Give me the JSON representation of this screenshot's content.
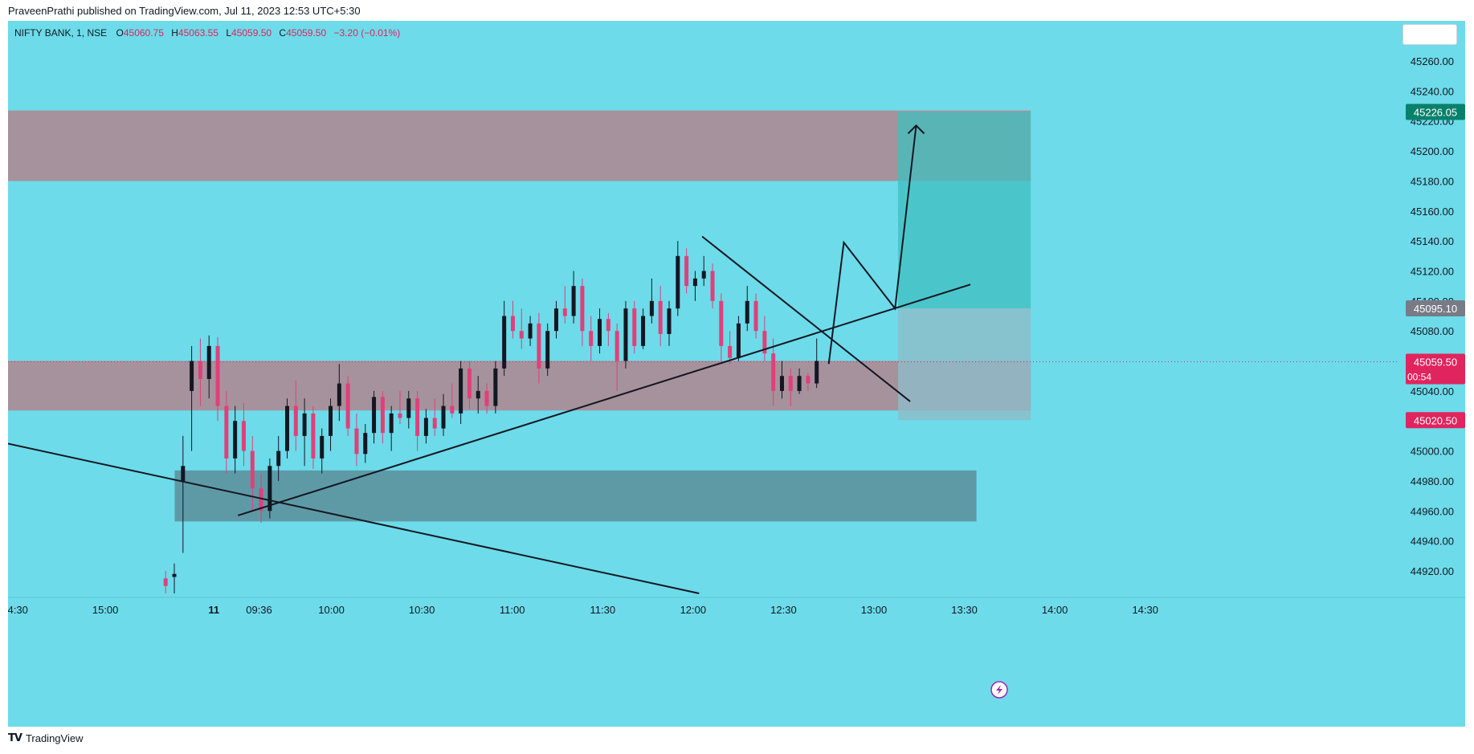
{
  "header": {
    "published_line": "PraveenPrathi published on TradingView.com, Jul 11, 2023 12:53 UTC+5:30"
  },
  "legend": {
    "symbol": "NIFTY BANK, 1, NSE",
    "open_label": "O",
    "open_value": "45060.75",
    "high_label": "H",
    "high_value": "45063.55",
    "low_label": "L",
    "low_value": "45059.50",
    "close_label": "C",
    "close_value": "45059.50",
    "change": "−3.20 (−0.01%)"
  },
  "footer": {
    "brand": "TradingView",
    "logo_glyph": "TV"
  },
  "colors": {
    "background": "#6ddbe9",
    "zone": "#a6929c",
    "demand_zone": "#5e9aa6",
    "target_zone": "#3fbfbf",
    "stop_zone": "#8dbcc8",
    "up_candle": "#131722",
    "down_candle": "#e0407a",
    "price_tag": "#e0245e",
    "target_tag": "#08816b",
    "entry_tag": "#787b86"
  },
  "chart_data": {
    "type": "candlestick",
    "ylim": [
      44905,
      45285
    ],
    "y_ticks": [
      45260,
      45240,
      45220,
      45200,
      45180,
      45160,
      45140,
      45120,
      45100,
      45080,
      45060,
      45040,
      45020,
      45000,
      44980,
      44960,
      44940,
      44920
    ],
    "y_tick_labels": [
      "45260.00",
      "45240.00",
      "45220.00",
      "45200.00",
      "45180.00",
      "45160.00",
      "45140.00",
      "45120.00",
      "45100.00",
      "45080.00",
      "45060.00",
      "45040.00",
      "45020.00",
      "45000.00",
      "44980.00",
      "44960.00",
      "44940.00",
      "44920.00"
    ],
    "x_ticks": [
      "14:30",
      "15:00",
      "11",
      "09:36",
      "10:00",
      "10:30",
      "11:00",
      "11:30",
      "12:00",
      "12:30",
      "13:00",
      "13:30",
      "14:00",
      "14:30"
    ],
    "x_tick_minutes": [
      -75,
      -45,
      -9,
      6,
      30,
      60,
      90,
      120,
      150,
      180,
      210,
      240,
      270,
      300
    ],
    "bold_tick": "11",
    "session_open_minute": 0,
    "price_tags": [
      {
        "value": 45226.05,
        "label": "45226.05",
        "kind": "target"
      },
      {
        "value": 45095.1,
        "label": "45095.10",
        "kind": "entry"
      },
      {
        "value": 45059.5,
        "label": "45059.50",
        "sublabel": "00:54",
        "kind": "last"
      },
      {
        "value": 45020.5,
        "label": "45020.50",
        "kind": "stop"
      }
    ],
    "zones": [
      {
        "name": "supply-zone",
        "from_minute": -135,
        "to_minute": 262,
        "low": 45180,
        "high": 45227,
        "kind": "zone"
      },
      {
        "name": "mid-zone",
        "from_minute": -135,
        "to_minute": 262,
        "low": 45027,
        "high": 45060,
        "kind": "zone"
      },
      {
        "name": "demand-zone",
        "from_minute": -22,
        "to_minute": 244,
        "low": 44953,
        "high": 44987,
        "kind": "demand_zone"
      }
    ],
    "position": {
      "from_minute": 218,
      "to_minute": 262,
      "entry": 45095.1,
      "target": 45226.05,
      "stop": 45020.5
    },
    "trend_lines": [
      {
        "name": "long-downtrend-line",
        "points": [
          [
            -135,
            45030
          ],
          [
            152,
            44905
          ]
        ]
      },
      {
        "name": "uptrend-line",
        "points": [
          [
            -1,
            44957
          ],
          [
            242,
            45111
          ]
        ]
      },
      {
        "name": "short-downtrend-line",
        "points": [
          [
            153,
            45143
          ],
          [
            222,
            45033
          ]
        ]
      },
      {
        "name": "projection-path",
        "points": [
          [
            195,
            45058
          ],
          [
            200,
            45139
          ],
          [
            217,
            45095
          ],
          [
            224,
            45217
          ]
        ]
      }
    ],
    "candles": [
      {
        "o": 44915,
        "h": 44920,
        "l": 44905,
        "c": 44910
      },
      {
        "o": 44916,
        "h": 44925,
        "l": 44905,
        "c": 44918
      },
      {
        "o": 44980,
        "h": 45010,
        "l": 44932,
        "c": 44990
      },
      {
        "o": 45040,
        "h": 45070,
        "l": 45000,
        "c": 45060
      },
      {
        "o": 45060,
        "h": 45075,
        "l": 45030,
        "c": 45048
      },
      {
        "o": 45048,
        "h": 45077,
        "l": 45035,
        "c": 45070
      },
      {
        "o": 45070,
        "h": 45076,
        "l": 45020,
        "c": 45030
      },
      {
        "o": 45030,
        "h": 45040,
        "l": 44985,
        "c": 44995
      },
      {
        "o": 44995,
        "h": 45030,
        "l": 44985,
        "c": 45020
      },
      {
        "o": 45020,
        "h": 45032,
        "l": 44990,
        "c": 45000
      },
      {
        "o": 45000,
        "h": 45010,
        "l": 44960,
        "c": 44975
      },
      {
        "o": 44975,
        "h": 44985,
        "l": 44952,
        "c": 44960
      },
      {
        "o": 44960,
        "h": 44995,
        "l": 44955,
        "c": 44990
      },
      {
        "o": 44990,
        "h": 45010,
        "l": 44980,
        "c": 45000
      },
      {
        "o": 45000,
        "h": 45035,
        "l": 44995,
        "c": 45030
      },
      {
        "o": 45030,
        "h": 45047,
        "l": 45000,
        "c": 45010
      },
      {
        "o": 45010,
        "h": 45035,
        "l": 44990,
        "c": 45025
      },
      {
        "o": 45025,
        "h": 45030,
        "l": 44988,
        "c": 44995
      },
      {
        "o": 44995,
        "h": 45015,
        "l": 44985,
        "c": 45010
      },
      {
        "o": 45010,
        "h": 45035,
        "l": 45000,
        "c": 45030
      },
      {
        "o": 45030,
        "h": 45058,
        "l": 45020,
        "c": 45045
      },
      {
        "o": 45045,
        "h": 45050,
        "l": 45010,
        "c": 45015
      },
      {
        "o": 45015,
        "h": 45025,
        "l": 44990,
        "c": 44998
      },
      {
        "o": 44998,
        "h": 45018,
        "l": 44992,
        "c": 45012
      },
      {
        "o": 45012,
        "h": 45040,
        "l": 45005,
        "c": 45036
      },
      {
        "o": 45036,
        "h": 45040,
        "l": 45005,
        "c": 45012
      },
      {
        "o": 45012,
        "h": 45030,
        "l": 45000,
        "c": 45025
      },
      {
        "o": 45025,
        "h": 45040,
        "l": 45018,
        "c": 45022
      },
      {
        "o": 45022,
        "h": 45040,
        "l": 45015,
        "c": 45035
      },
      {
        "o": 45035,
        "h": 45040,
        "l": 45000,
        "c": 45010
      },
      {
        "o": 45010,
        "h": 45028,
        "l": 45005,
        "c": 45022
      },
      {
        "o": 45022,
        "h": 45035,
        "l": 45010,
        "c": 45015
      },
      {
        "o": 45015,
        "h": 45038,
        "l": 45010,
        "c": 45030
      },
      {
        "o": 45030,
        "h": 45045,
        "l": 45022,
        "c": 45025
      },
      {
        "o": 45025,
        "h": 45060,
        "l": 45018,
        "c": 45055
      },
      {
        "o": 45055,
        "h": 45060,
        "l": 45028,
        "c": 45035
      },
      {
        "o": 45035,
        "h": 45050,
        "l": 45025,
        "c": 45040
      },
      {
        "o": 45040,
        "h": 45045,
        "l": 45025,
        "c": 45030
      },
      {
        "o": 45030,
        "h": 45060,
        "l": 45025,
        "c": 45055
      },
      {
        "o": 45055,
        "h": 45100,
        "l": 45050,
        "c": 45090
      },
      {
        "o": 45090,
        "h": 45100,
        "l": 45075,
        "c": 45080
      },
      {
        "o": 45080,
        "h": 45095,
        "l": 45068,
        "c": 45075
      },
      {
        "o": 45075,
        "h": 45090,
        "l": 45070,
        "c": 45085
      },
      {
        "o": 45085,
        "h": 45092,
        "l": 45045,
        "c": 45055
      },
      {
        "o": 45055,
        "h": 45085,
        "l": 45050,
        "c": 45080
      },
      {
        "o": 45080,
        "h": 45100,
        "l": 45075,
        "c": 45095
      },
      {
        "o": 45095,
        "h": 45110,
        "l": 45085,
        "c": 45090
      },
      {
        "o": 45090,
        "h": 45120,
        "l": 45085,
        "c": 45110
      },
      {
        "o": 45110,
        "h": 45115,
        "l": 45070,
        "c": 45080
      },
      {
        "o": 45080,
        "h": 45090,
        "l": 45060,
        "c": 45070
      },
      {
        "o": 45070,
        "h": 45095,
        "l": 45065,
        "c": 45088
      },
      {
        "o": 45088,
        "h": 45092,
        "l": 45070,
        "c": 45080
      },
      {
        "o": 45080,
        "h": 45085,
        "l": 45040,
        "c": 45060
      },
      {
        "o": 45060,
        "h": 45100,
        "l": 45055,
        "c": 45095
      },
      {
        "o": 45095,
        "h": 45100,
        "l": 45065,
        "c": 45070
      },
      {
        "o": 45070,
        "h": 45095,
        "l": 45068,
        "c": 45090
      },
      {
        "o": 45090,
        "h": 45115,
        "l": 45085,
        "c": 45100
      },
      {
        "o": 45100,
        "h": 45110,
        "l": 45070,
        "c": 45078
      },
      {
        "o": 45078,
        "h": 45100,
        "l": 45070,
        "c": 45095
      },
      {
        "o": 45095,
        "h": 45140,
        "l": 45090,
        "c": 45130
      },
      {
        "o": 45130,
        "h": 45135,
        "l": 45105,
        "c": 45110
      },
      {
        "o": 45110,
        "h": 45120,
        "l": 45100,
        "c": 45115
      },
      {
        "o": 45115,
        "h": 45130,
        "l": 45110,
        "c": 45120
      },
      {
        "o": 45120,
        "h": 45125,
        "l": 45095,
        "c": 45100
      },
      {
        "o": 45100,
        "h": 45105,
        "l": 45060,
        "c": 45070
      },
      {
        "o": 45070,
        "h": 45080,
        "l": 45058,
        "c": 45062
      },
      {
        "o": 45062,
        "h": 45090,
        "l": 45060,
        "c": 45085
      },
      {
        "o": 45085,
        "h": 45110,
        "l": 45080,
        "c": 45100
      },
      {
        "o": 45100,
        "h": 45105,
        "l": 45075,
        "c": 45080
      },
      {
        "o": 45080,
        "h": 45090,
        "l": 45060,
        "c": 45065
      },
      {
        "o": 45065,
        "h": 45075,
        "l": 45030,
        "c": 45040
      },
      {
        "o": 45040,
        "h": 45060,
        "l": 45035,
        "c": 45050
      },
      {
        "o": 45050,
        "h": 45055,
        "l": 45030,
        "c": 45040
      },
      {
        "o": 45040,
        "h": 45055,
        "l": 45038,
        "c": 45050
      },
      {
        "o": 45050,
        "h": 45052,
        "l": 45040,
        "c": 45045
      },
      {
        "o": 45045,
        "h": 45075,
        "l": 45042,
        "c": 45060
      }
    ],
    "candle_start_minute": -25,
    "candle_end_minute": 191,
    "last_price_line": 45059.5
  }
}
